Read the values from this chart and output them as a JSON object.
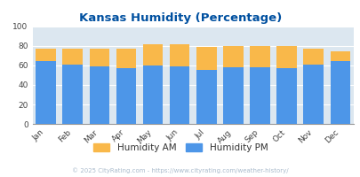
{
  "title": "Kansas Humidity (Percentage)",
  "months": [
    "Jan",
    "Feb",
    "Mar",
    "Apr",
    "May",
    "Jun",
    "Jul",
    "Aug",
    "Sep",
    "Oct",
    "Nov",
    "Dec"
  ],
  "humidity_pm": [
    65,
    61,
    59,
    57,
    60,
    59,
    55,
    58,
    58,
    57,
    61,
    65
  ],
  "humidity_am": [
    77,
    77,
    77,
    77,
    82,
    82,
    79,
    80,
    80,
    80,
    77,
    75
  ],
  "color_pm": "#4d96e8",
  "color_am": "#f9b84a",
  "bg_color": "#dce7f0",
  "ylim": [
    0,
    100
  ],
  "yticks": [
    0,
    20,
    40,
    60,
    80,
    100
  ],
  "title_color": "#0050a0",
  "legend_label_am": "Humidity AM",
  "legend_label_pm": "Humidity PM",
  "footer_text": "© 2025 CityRating.com - https://www.cityrating.com/weather-history/",
  "footer_color": "#aabbcc"
}
